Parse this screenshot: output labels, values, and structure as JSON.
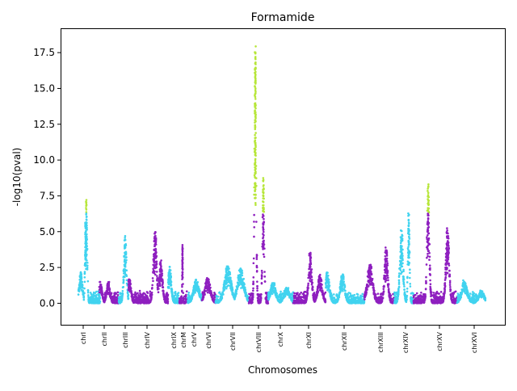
{
  "chart_data": {
    "type": "scatter",
    "title": "Formamide",
    "xlabel": "Chromosomes",
    "ylabel": "-log10(pval)",
    "ylim": [
      -1.5,
      19.2
    ],
    "yticks": [
      "0.0",
      "2.5",
      "5.0",
      "7.5",
      "10.0",
      "12.5",
      "15.0",
      "17.5"
    ],
    "ytick_values": [
      0,
      2.5,
      5,
      7.5,
      10,
      12.5,
      15,
      17.5
    ],
    "significance_threshold": 6.0,
    "colors": {
      "purple": "#8e1fbf",
      "cyan": "#41d3ef",
      "significant": "#b7e63a"
    },
    "chromosomes": [
      {
        "name": "chrI",
        "tick": 103,
        "start": 97,
        "end": 124,
        "color": "cyan",
        "peaks": [
          [
            100,
            2.2,
            3
          ],
          [
            107,
            7.4,
            1.5
          ],
          [
            106,
            6.1,
            1.2
          ]
        ]
      },
      {
        "name": "chrII",
        "tick": 129,
        "start": 124,
        "end": 147,
        "color": "purple",
        "peaks": [
          [
            124,
            1.6,
            3
          ],
          [
            134,
            1.5,
            3
          ]
        ]
      },
      {
        "name": "chrIII",
        "tick": 155,
        "start": 147,
        "end": 159,
        "color": "cyan",
        "peaks": [
          [
            155,
            4.7,
            2.5
          ]
        ]
      },
      {
        "name": "chrIV",
        "tick": 182,
        "start": 159,
        "end": 208,
        "color": "purple",
        "peaks": [
          [
            160,
            1.8,
            3
          ],
          [
            192,
            5.2,
            3
          ],
          [
            199,
            3.1,
            3
          ]
        ]
      },
      {
        "name": "chrIX",
        "tick": 215,
        "start": 208,
        "end": 222,
        "color": "cyan",
        "peaks": [
          [
            210,
            2.6,
            3
          ]
        ]
      },
      {
        "name": "chrM",
        "tick": 227,
        "start": 222,
        "end": 232,
        "color": "purple",
        "peaks": [
          [
            226,
            4.3,
            0.6
          ]
        ]
      },
      {
        "name": "chrV",
        "tick": 240,
        "start": 232,
        "end": 250,
        "color": "cyan",
        "peaks": [
          [
            243,
            1.7,
            5
          ]
        ]
      },
      {
        "name": "chrVI",
        "tick": 258,
        "start": 250,
        "end": 267,
        "color": "purple",
        "peaks": [
          [
            257,
            1.8,
            5
          ]
        ]
      },
      {
        "name": "chrVII",
        "tick": 288,
        "start": 267,
        "end": 308,
        "color": "cyan",
        "peaks": [
          [
            282,
            2.6,
            6
          ],
          [
            298,
            2.5,
            6
          ]
        ]
      },
      {
        "name": "chrVIII",
        "tick": 320,
        "start": 308,
        "end": 332,
        "color": "purple",
        "peaks": [
          [
            316,
            18.2,
            1.6
          ],
          [
            326,
            9.0,
            1.6
          ]
        ]
      },
      {
        "name": "chrX",
        "tick": 347,
        "start": 332,
        "end": 363,
        "color": "cyan",
        "peaks": [
          [
            338,
            1.5,
            5
          ],
          [
            355,
            1.1,
            5
          ]
        ]
      },
      {
        "name": "chrXI",
        "tick": 382,
        "start": 363,
        "end": 403,
        "color": "purple",
        "peaks": [
          [
            384,
            3.6,
            3
          ],
          [
            396,
            2.0,
            4
          ]
        ]
      },
      {
        "name": "chrXII",
        "tick": 426,
        "start": 403,
        "end": 451,
        "color": "cyan",
        "peaks": [
          [
            405,
            2.2,
            4
          ],
          [
            424,
            2.1,
            4
          ]
        ]
      },
      {
        "name": "chrXIII",
        "tick": 471,
        "start": 451,
        "end": 488,
        "color": "purple",
        "peaks": [
          [
            458,
            2.8,
            5
          ],
          [
            478,
            3.9,
            3
          ]
        ]
      },
      {
        "name": "chrXIV",
        "tick": 502,
        "start": 488,
        "end": 512,
        "color": "cyan",
        "peaks": [
          [
            497,
            5.2,
            3
          ],
          [
            506,
            6.5,
            1.5
          ]
        ]
      },
      {
        "name": "chrXV",
        "tick": 544,
        "start": 512,
        "end": 566,
        "color": "purple",
        "peaks": [
          [
            530,
            8.5,
            2.2
          ],
          [
            554,
            5.3,
            3
          ]
        ]
      },
      {
        "name": "chrXVI",
        "tick": 587,
        "start": 566,
        "end": 601,
        "color": "cyan",
        "peaks": [
          [
            575,
            1.6,
            5
          ],
          [
            596,
            0.9,
            5
          ]
        ]
      }
    ]
  }
}
